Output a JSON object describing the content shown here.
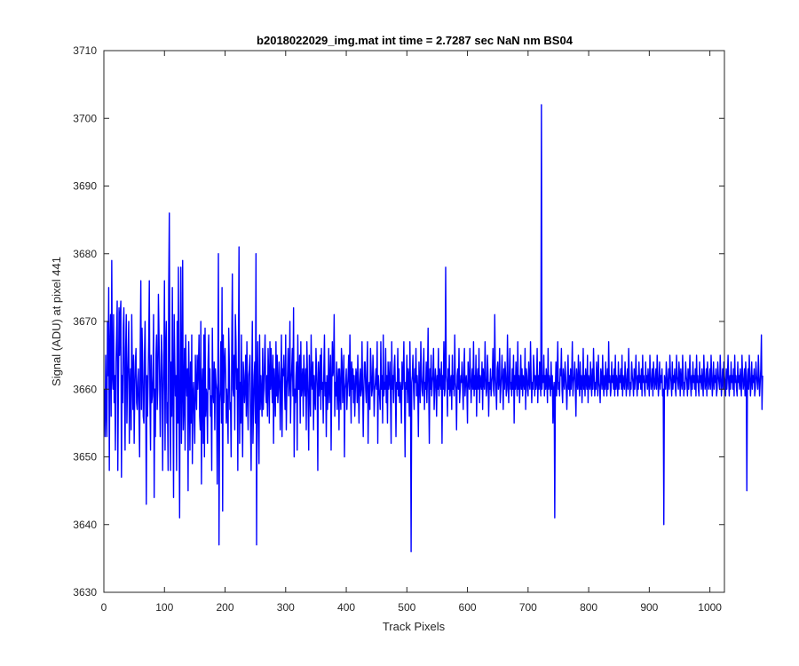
{
  "chart_data": {
    "type": "line",
    "title": "b2018022029_img.mat int time = 2.7287 sec  NaN nm BS04",
    "xlabel": "Track Pixels",
    "ylabel": "Signal (ADU) at pixel 441",
    "xlim": [
      0,
      1024
    ],
    "ylim": [
      3630,
      3710
    ],
    "xticks": [
      0,
      100,
      200,
      300,
      400,
      500,
      600,
      700,
      800,
      900,
      1000
    ],
    "yticks": [
      3630,
      3640,
      3650,
      3660,
      3670,
      3680,
      3690,
      3700,
      3710
    ],
    "grid": false,
    "legend": "none",
    "series": [
      {
        "color": "#0000ff",
        "x_start": 1,
        "x_step": 1,
        "y": [
          3660,
          3653,
          3665,
          3657,
          3653,
          3670,
          3662,
          3675,
          3648,
          3666,
          3671,
          3656,
          3679,
          3662,
          3660,
          3671,
          3658,
          3662,
          3651,
          3664,
          3668,
          3673,
          3648,
          3660,
          3672,
          3665,
          3671,
          3673,
          3647,
          3662,
          3658,
          3669,
          3672,
          3660,
          3651,
          3666,
          3671,
          3655,
          3661,
          3665,
          3670,
          3652,
          3660,
          3663,
          3654,
          3671,
          3662,
          3657,
          3665,
          3652,
          3660,
          3664,
          3666,
          3658,
          3657,
          3661,
          3663,
          3656,
          3650,
          3666,
          3676,
          3657,
          3669,
          3664,
          3656,
          3655,
          3665,
          3670,
          3660,
          3643,
          3662,
          3656,
          3661,
          3667,
          3676,
          3659,
          3651,
          3665,
          3658,
          3659,
          3662,
          3671,
          3644,
          3660,
          3653,
          3665,
          3668,
          3657,
          3660,
          3674,
          3668,
          3661,
          3653,
          3661,
          3668,
          3665,
          3648,
          3659,
          3664,
          3676,
          3651,
          3666,
          3670,
          3655,
          3658,
          3648,
          3675,
          3686,
          3660,
          3648,
          3664,
          3656,
          3675,
          3660,
          3644,
          3671,
          3664,
          3659,
          3662,
          3648,
          3670,
          3655,
          3678,
          3657,
          3641,
          3665,
          3678,
          3652,
          3660,
          3679,
          3654,
          3658,
          3666,
          3651,
          3668,
          3662,
          3659,
          3663,
          3645,
          3667,
          3660,
          3651,
          3664,
          3655,
          3668,
          3649,
          3659,
          3661,
          3656,
          3652,
          3665,
          3660,
          3657,
          3665,
          3660,
          3663,
          3668,
          3656,
          3654,
          3670,
          3646,
          3660,
          3663,
          3652,
          3668,
          3650,
          3669,
          3656,
          3660,
          3659,
          3652,
          3664,
          3668,
          3660,
          3663,
          3656,
          3659,
          3648,
          3669,
          3660,
          3658,
          3664,
          3654,
          3663,
          3661,
          3660,
          3646,
          3660,
          3680,
          3637,
          3658,
          3660,
          3667,
          3655,
          3675,
          3642,
          3668,
          3658,
          3664,
          3666,
          3662,
          3655,
          3660,
          3657,
          3652,
          3669,
          3664,
          3657,
          3658,
          3650,
          3666,
          3677,
          3660,
          3659,
          3665,
          3654,
          3671,
          3667,
          3660,
          3663,
          3648,
          3665,
          3681,
          3652,
          3661,
          3655,
          3668,
          3657,
          3650,
          3664,
          3662,
          3658,
          3660,
          3665,
          3656,
          3667,
          3659,
          3654,
          3662,
          3663,
          3665,
          3655,
          3648,
          3660,
          3670,
          3652,
          3657,
          3662,
          3664,
          3655,
          3680,
          3637,
          3661,
          3667,
          3655,
          3649,
          3668,
          3657,
          3662,
          3659,
          3656,
          3666,
          3657,
          3660,
          3664,
          3668,
          3660,
          3658,
          3662,
          3656,
          3666,
          3662,
          3655,
          3667,
          3660,
          3666,
          3661,
          3658,
          3665,
          3652,
          3663,
          3660,
          3656,
          3667,
          3659,
          3665,
          3658,
          3660,
          3664,
          3661,
          3654,
          3661,
          3668,
          3653,
          3663,
          3662,
          3665,
          3661,
          3657,
          3668,
          3654,
          3660,
          3662,
          3666,
          3659,
          3661,
          3670,
          3655,
          3661,
          3663,
          3666,
          3659,
          3672,
          3650,
          3660,
          3658,
          3662,
          3664,
          3651,
          3668,
          3660,
          3660,
          3665,
          3655,
          3667,
          3659,
          3661,
          3663,
          3656,
          3665,
          3661,
          3659,
          3663,
          3654,
          3667,
          3662,
          3658,
          3651,
          3665,
          3660,
          3656,
          3668,
          3661,
          3660,
          3664,
          3654,
          3662,
          3659,
          3657,
          3666,
          3663,
          3660,
          3648,
          3664,
          3659,
          3661,
          3665,
          3657,
          3666,
          3660,
          3661,
          3655,
          3663,
          3668,
          3659,
          3661,
          3653,
          3662,
          3657,
          3660,
          3666,
          3658,
          3661,
          3665,
          3651,
          3660,
          3667,
          3662,
          3663,
          3671,
          3656,
          3661,
          3659,
          3664,
          3657,
          3661,
          3663,
          3654,
          3663,
          3660,
          3657,
          3666,
          3664,
          3658,
          3661,
          3665,
          3650,
          3660,
          3661,
          3663,
          3657,
          3660,
          3662,
          3665,
          3659,
          3668,
          3661,
          3655,
          3664,
          3660,
          3663,
          3658,
          3662,
          3656,
          3660,
          3663,
          3662,
          3658,
          3665,
          3660,
          3655,
          3661,
          3663,
          3659,
          3660,
          3667,
          3660,
          3653,
          3660,
          3664,
          3664,
          3660,
          3658,
          3663,
          3667,
          3652,
          3660,
          3661,
          3657,
          3666,
          3663,
          3659,
          3660,
          3665,
          3662,
          3656,
          3660,
          3661,
          3663,
          3660,
          3667,
          3652,
          3662,
          3660,
          3659,
          3657,
          3667,
          3660,
          3662,
          3655,
          3668,
          3659,
          3661,
          3660,
          3666,
          3658,
          3662,
          3655,
          3664,
          3660,
          3661,
          3664,
          3659,
          3652,
          3667,
          3660,
          3662,
          3658,
          3663,
          3665,
          3660,
          3653,
          3661,
          3660,
          3666,
          3659,
          3663,
          3658,
          3661,
          3660,
          3655,
          3664,
          3660,
          3662,
          3667,
          3659,
          3650,
          3661,
          3660,
          3665,
          3658,
          3663,
          3662,
          3656,
          3667,
          3660,
          3636,
          3661,
          3662,
          3665,
          3660,
          3657,
          3663,
          3661,
          3666,
          3659,
          3662,
          3660,
          3653,
          3664,
          3661,
          3658,
          3667,
          3662,
          3660,
          3659,
          3663,
          3666,
          3657,
          3661,
          3660,
          3664,
          3658,
          3662,
          3669,
          3660,
          3652,
          3663,
          3660,
          3665,
          3659,
          3661,
          3662,
          3666,
          3657,
          3660,
          3663,
          3661,
          3656,
          3662,
          3660,
          3666,
          3659,
          3663,
          3661,
          3660,
          3664,
          3652,
          3662,
          3660,
          3667,
          3659,
          3660,
          3678,
          3662,
          3661,
          3656,
          3663,
          3660,
          3665,
          3659,
          3661,
          3662,
          3657,
          3665,
          3660,
          3662,
          3659,
          3668,
          3661,
          3660,
          3654,
          3662,
          3663,
          3660,
          3666,
          3658,
          3660,
          3662,
          3661,
          3664,
          3660,
          3657,
          3663,
          3666,
          3659,
          3661,
          3662,
          3660,
          3655,
          3664,
          3661,
          3660,
          3666,
          3662,
          3658,
          3661,
          3663,
          3660,
          3667,
          3659,
          3662,
          3660,
          3665,
          3656,
          3661,
          3663,
          3660,
          3666,
          3658,
          3662,
          3661,
          3660,
          3664,
          3657,
          3663,
          3661,
          3660,
          3667,
          3662,
          3659,
          3660,
          3665,
          3662,
          3656,
          3661,
          3660,
          3663,
          3659,
          3661,
          3662,
          3666,
          3660,
          3659,
          3671,
          3662,
          3660,
          3657,
          3663,
          3664,
          3660,
          3661,
          3666,
          3658,
          3660,
          3662,
          3665,
          3661,
          3657,
          3663,
          3660,
          3664,
          3662,
          3659,
          3660,
          3668,
          3661,
          3658,
          3662,
          3666,
          3660,
          3661,
          3659,
          3663,
          3660,
          3665,
          3655,
          3662,
          3660,
          3664,
          3661,
          3659,
          3667,
          3660,
          3662,
          3658,
          3661,
          3665,
          3660,
          3663,
          3659,
          3662,
          3661,
          3660,
          3666,
          3657,
          3663,
          3662,
          3660,
          3659,
          3664,
          3661,
          3660,
          3667,
          3662,
          3658,
          3661,
          3660,
          3665,
          3663,
          3659,
          3662,
          3660,
          3661,
          3666,
          3658,
          3662,
          3660,
          3664,
          3661,
          3659,
          3702,
          3660,
          3662,
          3661,
          3665,
          3659,
          3662,
          3660,
          3663,
          3661,
          3658,
          3666,
          3660,
          3662,
          3661,
          3659,
          3664,
          3660,
          3662,
          3655,
          3660,
          3661,
          3641,
          3660,
          3664,
          3659,
          3662,
          3667,
          3660,
          3661,
          3659,
          3663,
          3662,
          3666,
          3660,
          3658,
          3663,
          3661,
          3660,
          3664,
          3662,
          3660,
          3657,
          3661,
          3665,
          3660,
          3662,
          3659,
          3663,
          3660,
          3662,
          3667,
          3659,
          3661,
          3662,
          3664,
          3660,
          3656,
          3663,
          3661,
          3660,
          3665,
          3661,
          3659,
          3664,
          3660,
          3662,
          3658,
          3661,
          3666,
          3660,
          3662,
          3659,
          3663,
          3661,
          3660,
          3665,
          3658,
          3662,
          3661,
          3660,
          3664,
          3661,
          3659,
          3663,
          3660,
          3666,
          3662,
          3659,
          3661,
          3660,
          3664,
          3662,
          3659,
          3665,
          3661,
          3660,
          3658,
          3663,
          3662,
          3660,
          3665,
          3661,
          3659,
          3662,
          3660,
          3664,
          3661,
          3659,
          3663,
          3660,
          3667,
          3661,
          3662,
          3659,
          3660,
          3664,
          3661,
          3662,
          3660,
          3663,
          3659,
          3665,
          3660,
          3662,
          3661,
          3659,
          3664,
          3660,
          3662,
          3661,
          3663,
          3660,
          3665,
          3659,
          3662,
          3661,
          3660,
          3664,
          3662,
          3659,
          3661,
          3663,
          3660,
          3666,
          3662,
          3659,
          3661,
          3660,
          3664,
          3662,
          3661,
          3659,
          3663,
          3660,
          3662,
          3665,
          3661,
          3659,
          3662,
          3660,
          3664,
          3661,
          3662,
          3660,
          3663,
          3659,
          3665,
          3661,
          3662,
          3660,
          3659,
          3664,
          3661,
          3662,
          3660,
          3663,
          3661,
          3659,
          3665,
          3662,
          3660,
          3661,
          3663,
          3659,
          3664,
          3662,
          3660,
          3661,
          3663,
          3660,
          3665,
          3662,
          3659,
          3661,
          3664,
          3660,
          3662,
          3661,
          3663,
          3659,
          3660,
          3640,
          3662,
          3661,
          3660,
          3664,
          3662,
          3659,
          3661,
          3663,
          3660,
          3665,
          3662,
          3661,
          3659,
          3664,
          3660,
          3662,
          3661,
          3663,
          3660,
          3659,
          3665,
          3662,
          3661,
          3660,
          3664,
          3662,
          3659,
          3663,
          3661,
          3660,
          3665,
          3662,
          3659,
          3661,
          3660,
          3664,
          3662,
          3661,
          3659,
          3663,
          3660,
          3662,
          3665,
          3661,
          3659,
          3662,
          3660,
          3664,
          3661,
          3662,
          3660,
          3663,
          3659,
          3665,
          3661,
          3662,
          3660,
          3659,
          3664,
          3661,
          3662,
          3660,
          3663,
          3661,
          3659,
          3665,
          3662,
          3660,
          3661,
          3663,
          3659,
          3664,
          3662,
          3660,
          3661,
          3663,
          3660,
          3665,
          3662,
          3659,
          3661,
          3664,
          3660,
          3662,
          3661,
          3663,
          3659,
          3660,
          3664,
          3662,
          3661,
          3660,
          3665,
          3662,
          3659,
          3661,
          3663,
          3660,
          3664,
          3662,
          3661,
          3659,
          3663,
          3660,
          3662,
          3665,
          3661,
          3659,
          3662,
          3660,
          3664,
          3661,
          3662,
          3660,
          3663,
          3659,
          3665,
          3661,
          3662,
          3660,
          3659,
          3664,
          3661,
          3662,
          3660,
          3663,
          3661,
          3659,
          3665,
          3662,
          3660,
          3661,
          3663,
          3659,
          3664,
          3662,
          3645,
          3661,
          3663,
          3660,
          3665,
          3662,
          3659,
          3661,
          3664,
          3660,
          3662,
          3661,
          3663,
          3659,
          3660,
          3664,
          3662,
          3661,
          3660,
          3665,
          3662,
          3659,
          3661,
          3663,
          3668,
          3657,
          3662
        ]
      }
    ]
  }
}
